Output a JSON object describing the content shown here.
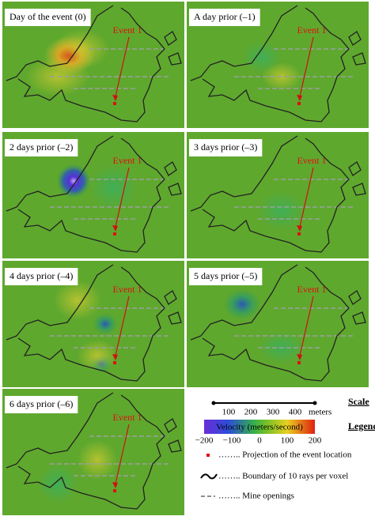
{
  "panels": [
    {
      "title": "Day of the event (0)",
      "event_label": "Event 1"
    },
    {
      "title": "A day prior (–1)",
      "event_label": "Event 1"
    },
    {
      "title": "2 days prior (–2)",
      "event_label": "Event 1"
    },
    {
      "title": "3 days prior (–3)",
      "event_label": "Event 1"
    },
    {
      "title": "4 days prior (–4)",
      "event_label": "Event 1"
    },
    {
      "title": "5 days prior (–5)",
      "event_label": "Event 1"
    },
    {
      "title": "6 days prior (–6)",
      "event_label": "Event 1"
    }
  ],
  "legend": {
    "scale": {
      "title": "Scale",
      "ticks": [
        100,
        200,
        300,
        400
      ],
      "unit": "meters"
    },
    "colorbar": {
      "title": "Legend",
      "label": "Velocity (meters/second)",
      "ticks": [
        {
          "value": -200,
          "label": "−200"
        },
        {
          "value": -100,
          "label": "−100"
        },
        0,
        100,
        200
      ]
    },
    "items": [
      {
        "text": "…….. Projection of the event location"
      },
      {
        "text": "…….. Boundary of 10 rays per voxel"
      },
      {
        "text": "…….. Mine openings"
      }
    ]
  }
}
